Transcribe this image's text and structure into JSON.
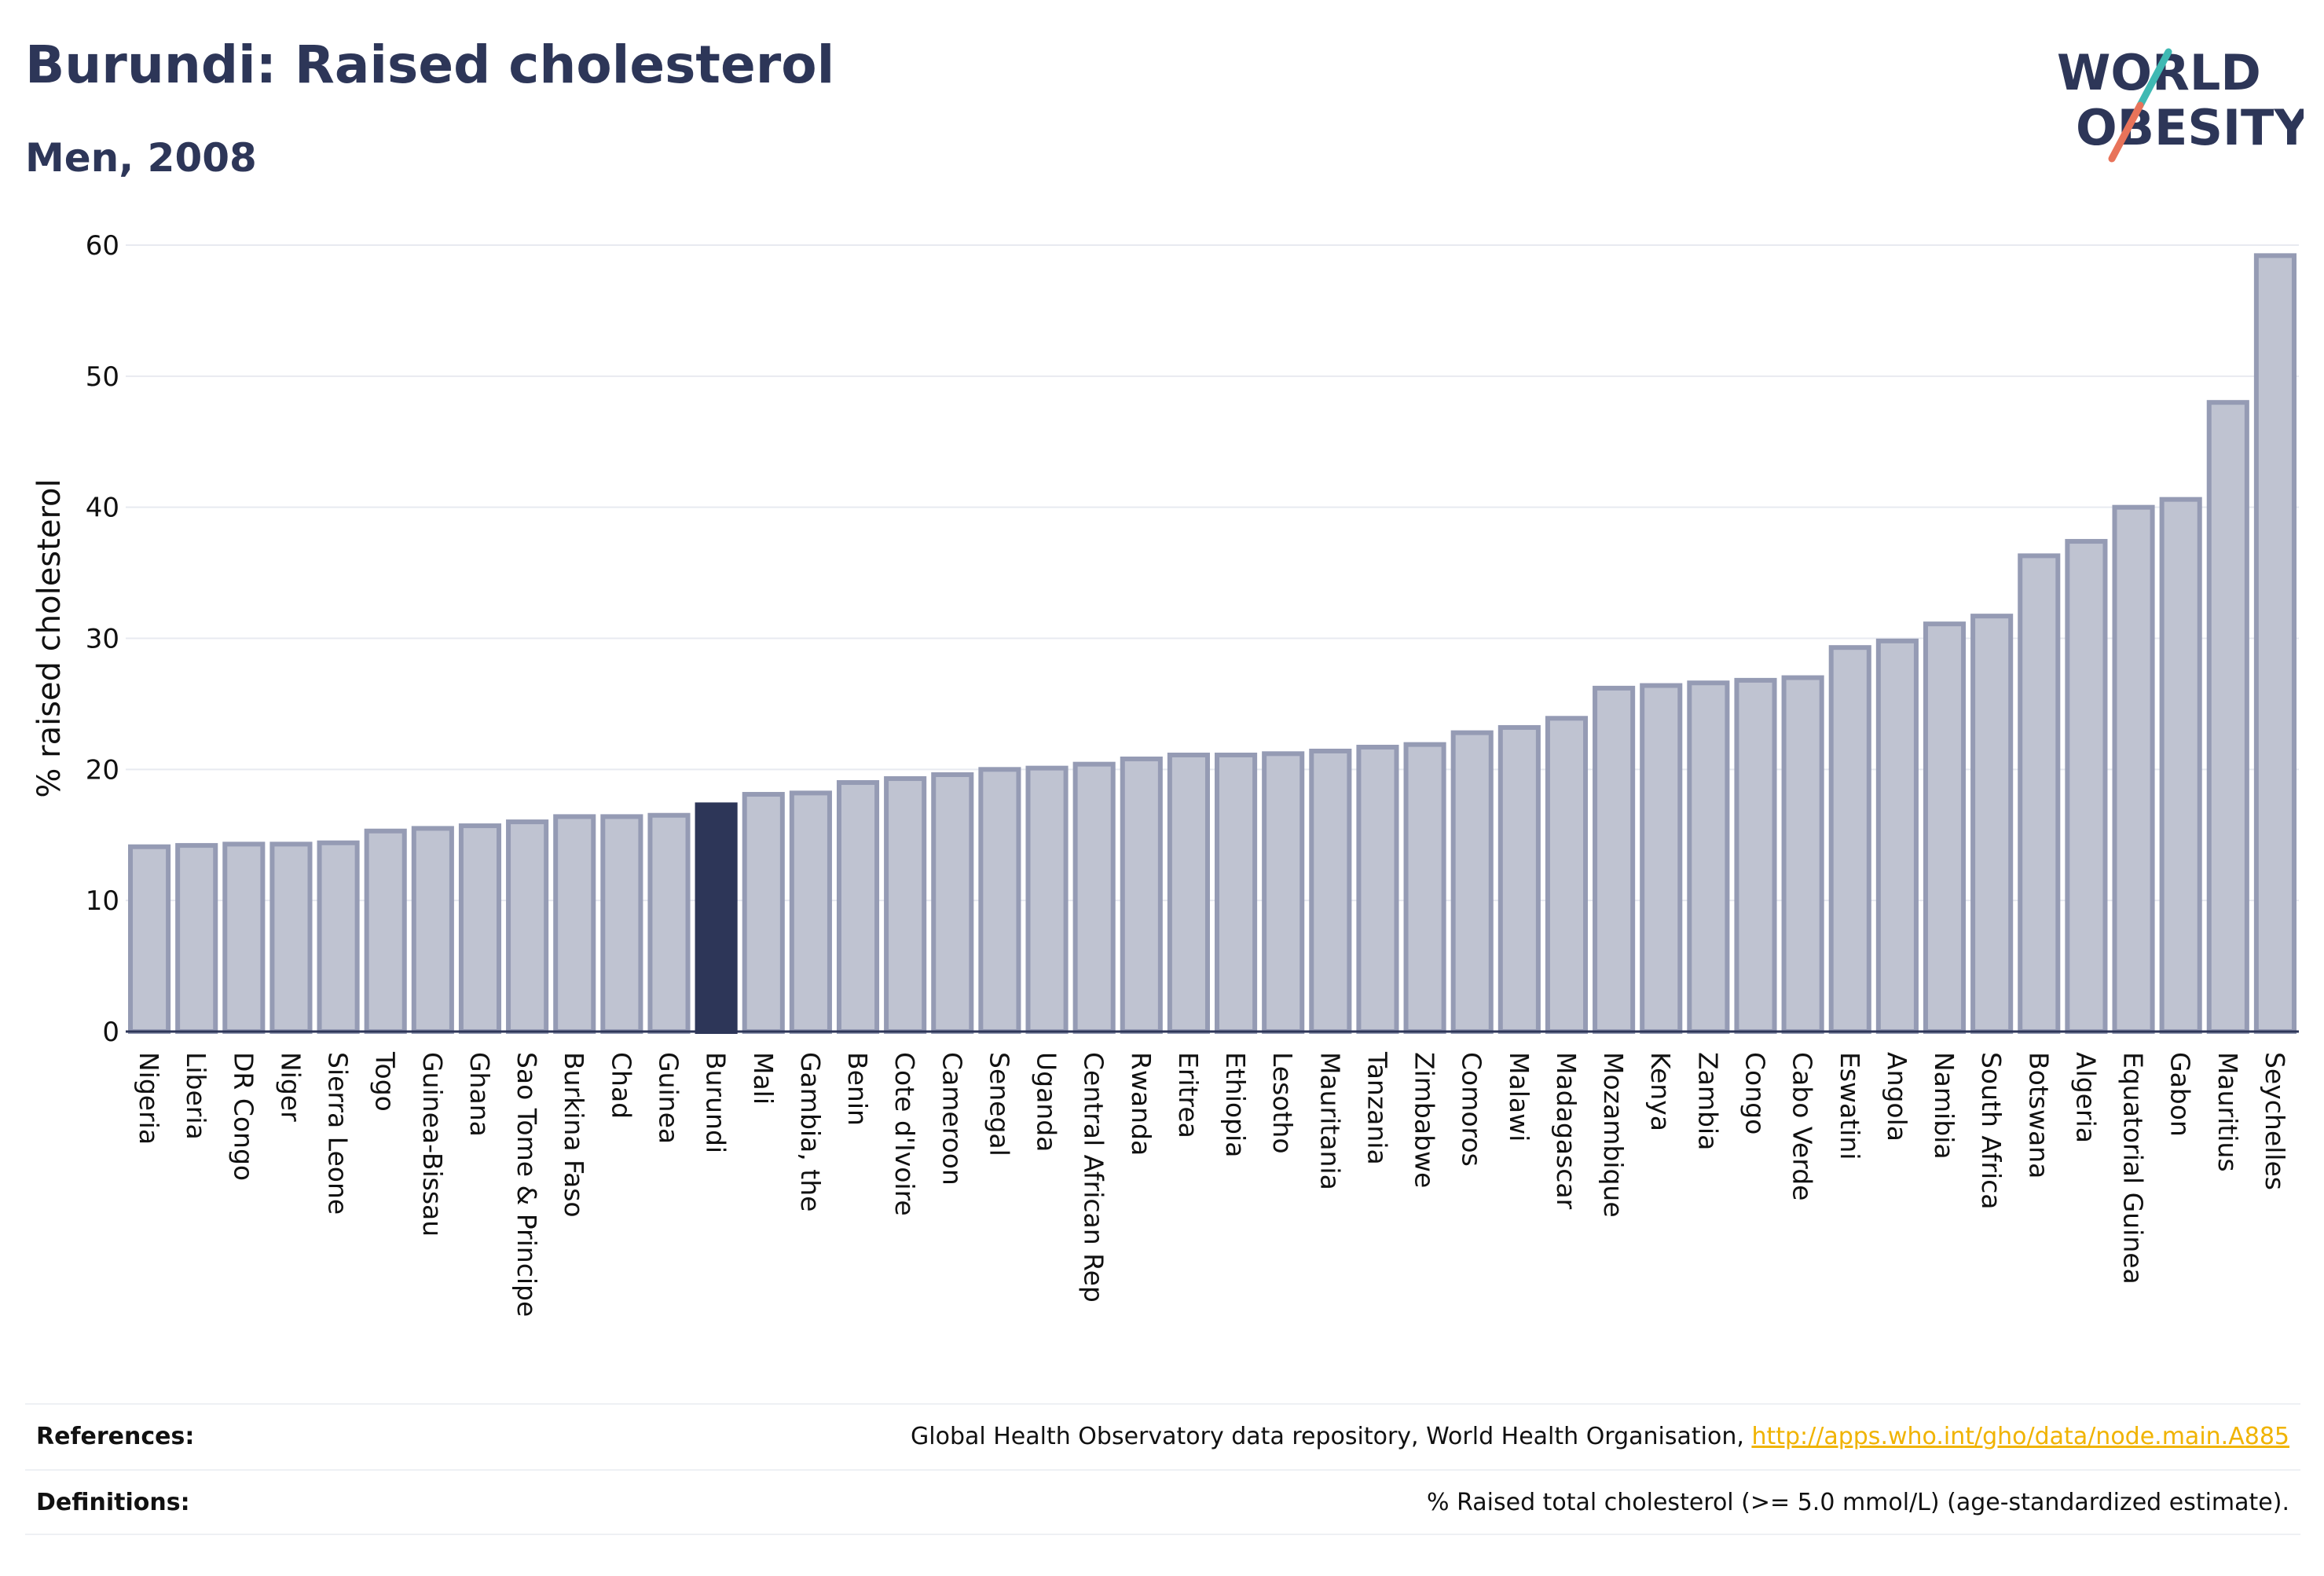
{
  "header": {
    "title": "Burundi: Raised cholesterol",
    "subtitle": "Men, 2008"
  },
  "logo": {
    "line1": "WORLD",
    "line2": "OBESITY",
    "colors": {
      "text": "#2d3658",
      "slash_top": "#3fb9b3",
      "slash_bottom": "#e8735a"
    }
  },
  "chart_data": {
    "type": "bar",
    "ylabel": "% raised cholesterol",
    "xlabel": "",
    "ylim": [
      0,
      60
    ],
    "yticks": [
      0,
      10,
      20,
      30,
      40,
      50,
      60
    ],
    "grid": true,
    "highlight": "Burundi",
    "colors": {
      "bar": "#bfc3d1",
      "bar_edge": "#959bb4",
      "highlight": "#2d3658"
    },
    "categories": [
      "Nigeria",
      "Liberia",
      "DR Congo",
      "Niger",
      "Sierra Leone",
      "Togo",
      "Guinea-Bissau",
      "Ghana",
      "Sao Tome & Principe",
      "Burkina Faso",
      "Chad",
      "Guinea",
      "Burundi",
      "Mali",
      "Gambia, the",
      "Benin",
      "Cote d'Ivoire",
      "Cameroon",
      "Senegal",
      "Uganda",
      "Central African Rep",
      "Rwanda",
      "Eritrea",
      "Ethiopia",
      "Lesotho",
      "Mauritania",
      "Tanzania",
      "Zimbabwe",
      "Comoros",
      "Malawi",
      "Madagascar",
      "Mozambique",
      "Kenya",
      "Zambia",
      "Congo",
      "Cabo Verde",
      "Eswatini",
      "Angola",
      "Namibia",
      "South Africa",
      "Botswana",
      "Algeria",
      "Equatorial Guinea",
      "Gabon",
      "Mauritius",
      "Seychelles"
    ],
    "values": [
      14.1,
      14.2,
      14.3,
      14.3,
      14.4,
      15.3,
      15.5,
      15.7,
      16.0,
      16.4,
      16.4,
      16.5,
      17.3,
      18.1,
      18.2,
      19.0,
      19.3,
      19.6,
      20.0,
      20.1,
      20.4,
      20.8,
      21.1,
      21.1,
      21.2,
      21.4,
      21.7,
      21.9,
      22.8,
      23.2,
      23.9,
      26.2,
      26.4,
      26.6,
      26.8,
      27.0,
      29.3,
      29.8,
      31.1,
      31.7,
      36.3,
      37.4,
      40.0,
      40.6,
      48.0,
      59.2
    ]
  },
  "footer": {
    "references_label": "References:",
    "references_text": "Global Health Observatory data repository, World Health Organisation, ",
    "references_link": "http://apps.who.int/gho/data/node.main.A885",
    "definitions_label": "Definitions:",
    "definitions_text": "% Raised total cholesterol (>= 5.0 mmol/L) (age-standardized estimate)."
  }
}
